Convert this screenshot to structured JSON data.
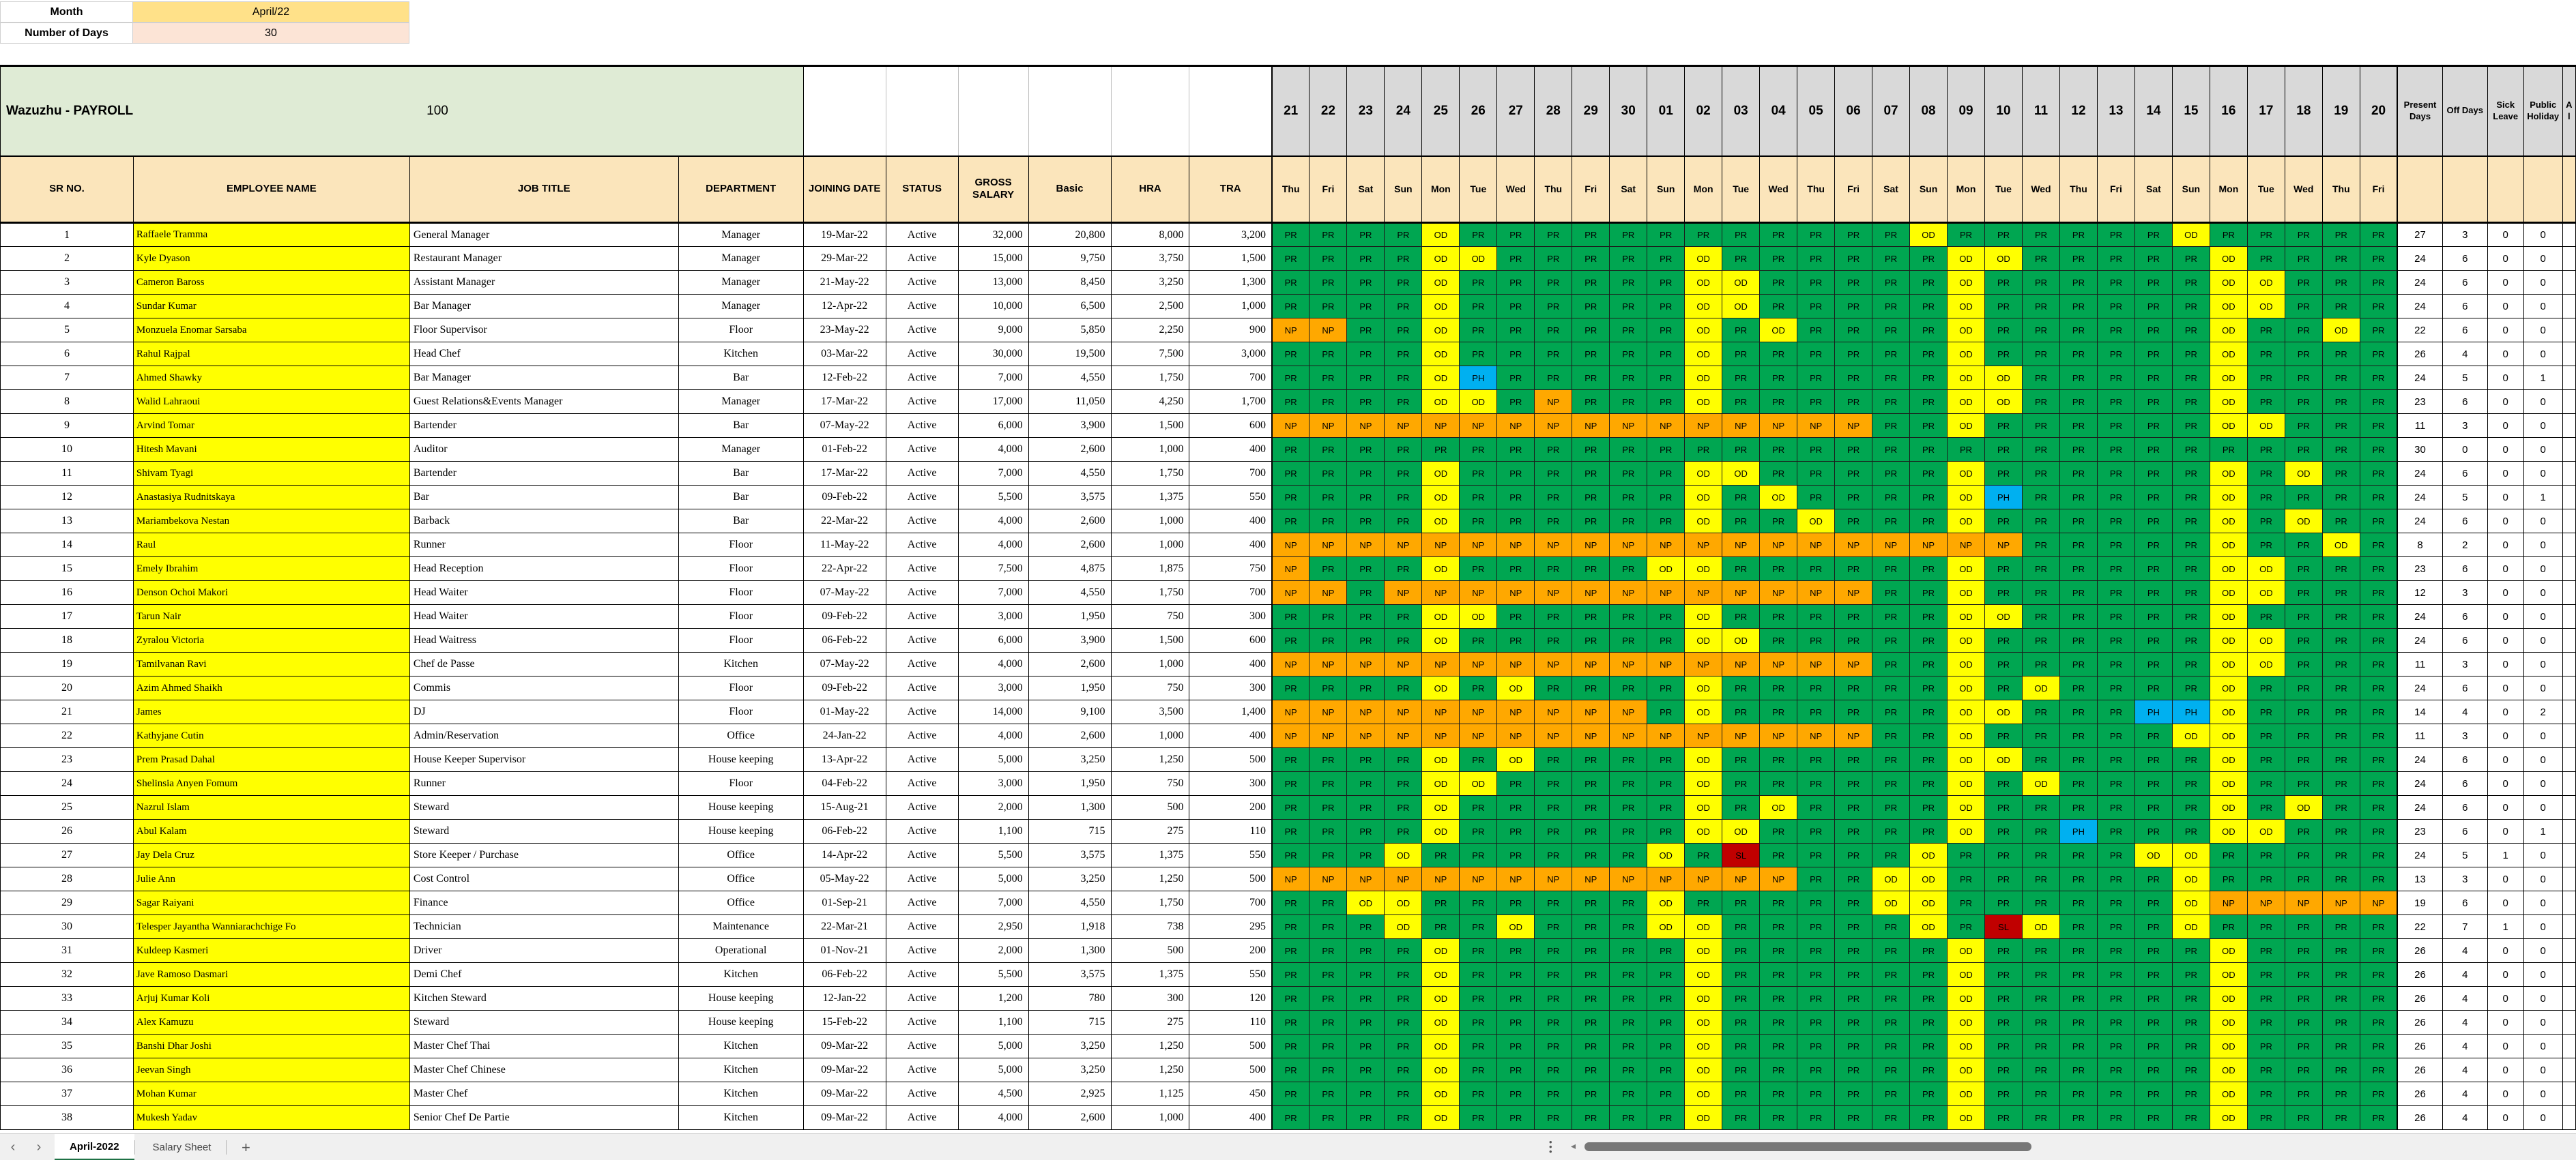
{
  "meta": {
    "month_label": "Month",
    "month_value": "April/22",
    "days_label": "Number of Days",
    "days_value": "30",
    "month_fill": "#FFE189",
    "days_fill": "#FCE4D6"
  },
  "payroll": {
    "title": "Wazuzhu - PAYROLL",
    "value": "100",
    "band_fill": "#DFEBD5"
  },
  "columns": [
    "SR NO.",
    "EMPLOYEE NAME",
    "JOB TITLE",
    "DEPARTMENT",
    "JOINING DATE",
    "STATUS",
    "GROSS SALARY",
    "Basic",
    "HRA",
    "TRA"
  ],
  "day_numbers": [
    "21",
    "22",
    "23",
    "24",
    "25",
    "26",
    "27",
    "28",
    "29",
    "30",
    "01",
    "02",
    "03",
    "04",
    "05",
    "06",
    "07",
    "08",
    "09",
    "10",
    "11",
    "12",
    "13",
    "14",
    "15",
    "16",
    "17",
    "18",
    "19",
    "20"
  ],
  "weekdays": [
    "Thu",
    "Fri",
    "Sat",
    "Sun",
    "Mon",
    "Tue",
    "Wed",
    "Thu",
    "Fri",
    "Sat",
    "Sun",
    "Mon",
    "Tue",
    "Wed",
    "Thu",
    "Fri",
    "Sat",
    "Sun",
    "Mon",
    "Tue",
    "Wed",
    "Thu",
    "Fri",
    "Sat",
    "Sun",
    "Mon",
    "Tue",
    "Wed",
    "Thu",
    "Fri"
  ],
  "summary_columns": [
    "Present Days",
    "Off Days",
    "Sick Leave",
    "Public Holiday"
  ],
  "partial_column": "A l",
  "codes": {
    "PR": "#00A651",
    "OD": "#FFFF00",
    "NP": "#FFA800",
    "PH": "#00B0F0",
    "SL": "#C00000"
  },
  "employees": [
    {
      "sr": "1",
      "name": "Raffaele Tramma",
      "title": "General Manager",
      "dept": "Manager",
      "joined": "19-Mar-22",
      "status": "Active",
      "gross": "32,000",
      "basic": "20,800",
      "hra": "8,000",
      "tra": "3,200",
      "att": "PR PR PR PR OD PR PR PR PR PR PR PR PR PR PR PR PR OD PR PR PR PR PR PR OD PR PR PR PR PR",
      "present": "27",
      "off": "3",
      "sick": "0",
      "ph": "0"
    },
    {
      "sr": "2",
      "name": "Kyle Dyason",
      "title": "Restaurant Manager",
      "dept": "Manager",
      "joined": "29-Mar-22",
      "status": "Active",
      "gross": "15,000",
      "basic": "9,750",
      "hra": "3,750",
      "tra": "1,500",
      "att": "PR PR PR PR OD OD PR PR PR PR PR OD PR PR PR PR PR PR OD OD PR PR PR PR PR OD PR PR PR PR",
      "present": "24",
      "off": "6",
      "sick": "0",
      "ph": "0"
    },
    {
      "sr": "3",
      "name": "Cameron Baross",
      "title": "Assistant Manager",
      "dept": "Manager",
      "joined": "21-May-22",
      "status": "Active",
      "gross": "13,000",
      "basic": "8,450",
      "hra": "3,250",
      "tra": "1,300",
      "att": "PR PR PR PR OD PR PR PR PR PR PR OD OD PR PR PR PR PR OD PR PR PR PR PR PR OD OD PR PR PR",
      "present": "24",
      "off": "6",
      "sick": "0",
      "ph": "0"
    },
    {
      "sr": "4",
      "name": "Sundar Kumar",
      "title": "Bar Manager",
      "dept": "Manager",
      "joined": "12-Apr-22",
      "status": "Active",
      "gross": "10,000",
      "basic": "6,500",
      "hra": "2,500",
      "tra": "1,000",
      "att": "PR PR PR PR OD PR PR PR PR PR PR OD OD PR PR PR PR PR OD PR PR PR PR PR PR OD OD PR PR PR",
      "present": "24",
      "off": "6",
      "sick": "0",
      "ph": "0"
    },
    {
      "sr": "5",
      "name": "Monzuela Enomar Sarsaba",
      "title": "Floor Supervisor",
      "dept": "Floor",
      "joined": "23-May-22",
      "status": "Active",
      "gross": "9,000",
      "basic": "5,850",
      "hra": "2,250",
      "tra": "900",
      "att": "NP NP PR PR OD PR PR PR PR PR PR OD PR OD PR PR PR PR OD PR PR PR PR PR PR OD PR PR OD PR",
      "present": "22",
      "off": "6",
      "sick": "0",
      "ph": "0"
    },
    {
      "sr": "6",
      "name": "Rahul Rajpal",
      "title": "Head Chef",
      "dept": "Kitchen",
      "joined": "03-Mar-22",
      "status": "Active",
      "gross": "30,000",
      "basic": "19,500",
      "hra": "7,500",
      "tra": "3,000",
      "att": "PR PR PR PR OD PR PR PR PR PR PR OD PR PR PR PR PR PR OD PR PR PR PR PR PR OD PR PR PR PR",
      "present": "26",
      "off": "4",
      "sick": "0",
      "ph": "0"
    },
    {
      "sr": "7",
      "name": "Ahmed Shawky",
      "title": "Bar Manager",
      "dept": "Bar",
      "joined": "12-Feb-22",
      "status": "Active",
      "gross": "7,000",
      "basic": "4,550",
      "hra": "1,750",
      "tra": "700",
      "att": "PR PR PR PR OD PH PR PR PR PR PR OD PR PR PR PR PR PR OD OD PR PR PR PR PR OD PR PR PR PR",
      "present": "24",
      "off": "5",
      "sick": "0",
      "ph": "1"
    },
    {
      "sr": "8",
      "name": "Walid Lahraoui",
      "title": "Guest Relations&Events Manager",
      "dept": "Manager",
      "joined": "17-Mar-22",
      "status": "Active",
      "gross": "17,000",
      "basic": "11,050",
      "hra": "4,250",
      "tra": "1,700",
      "att": "PR PR PR PR OD OD PR NP PR PR PR OD PR PR PR PR PR PR OD OD PR PR PR PR PR OD PR PR PR PR",
      "present": "23",
      "off": "6",
      "sick": "0",
      "ph": "0"
    },
    {
      "sr": "9",
      "name": "Arvind Tomar",
      "title": "Bartender",
      "dept": "Bar",
      "joined": "07-May-22",
      "status": "Active",
      "gross": "6,000",
      "basic": "3,900",
      "hra": "1,500",
      "tra": "600",
      "att": "NP NP NP NP NP NP NP NP NP NP NP NP NP NP NP NP PR PR OD PR PR PR PR PR PR OD OD PR PR PR",
      "present": "11",
      "off": "3",
      "sick": "0",
      "ph": "0"
    },
    {
      "sr": "10",
      "name": "Hitesh Mavani",
      "title": "Auditor",
      "dept": "Manager",
      "joined": "01-Feb-22",
      "status": "Active",
      "gross": "4,000",
      "basic": "2,600",
      "hra": "1,000",
      "tra": "400",
      "att": "PR PR PR PR PR PR PR PR PR PR PR PR PR PR PR PR PR PR PR PR PR PR PR PR PR PR PR PR PR PR",
      "present": "30",
      "off": "0",
      "sick": "0",
      "ph": "0"
    },
    {
      "sr": "11",
      "name": "Shivam Tyagi",
      "title": "Bartender",
      "dept": "Bar",
      "joined": "17-Mar-22",
      "status": "Active",
      "gross": "7,000",
      "basic": "4,550",
      "hra": "1,750",
      "tra": "700",
      "att": "PR PR PR PR OD PR PR PR PR PR PR OD OD PR PR PR PR PR OD PR PR PR PR PR PR OD PR OD PR PR",
      "present": "24",
      "off": "6",
      "sick": "0",
      "ph": "0"
    },
    {
      "sr": "12",
      "name": "Anastasiya Rudnitskaya",
      "title": "Bar",
      "dept": "Bar",
      "joined": "09-Feb-22",
      "status": "Active",
      "gross": "5,500",
      "basic": "3,575",
      "hra": "1,375",
      "tra": "550",
      "att": "PR PR PR PR OD PR PR PR PR PR PR OD PR OD PR PR PR PR OD PH PR PR PR PR PR OD PR PR PR PR",
      "present": "24",
      "off": "5",
      "sick": "0",
      "ph": "1"
    },
    {
      "sr": "13",
      "name": "Mariambekova Nestan",
      "title": "Barback",
      "dept": "Bar",
      "joined": "22-Mar-22",
      "status": "Active",
      "gross": "4,000",
      "basic": "2,600",
      "hra": "1,000",
      "tra": "400",
      "att": "PR PR PR PR OD PR PR PR PR PR PR OD PR PR OD PR PR PR OD PR PR PR PR PR PR OD PR OD PR PR",
      "present": "24",
      "off": "6",
      "sick": "0",
      "ph": "0"
    },
    {
      "sr": "14",
      "name": "Raul",
      "title": "Runner",
      "dept": "Floor",
      "joined": "11-May-22",
      "status": "Active",
      "gross": "4,000",
      "basic": "2,600",
      "hra": "1,000",
      "tra": "400",
      "att": "NP NP NP NP NP NP NP NP NP NP NP NP NP NP NP NP NP NP NP NP PR PR PR PR PR OD PR PR OD PR",
      "present": "8",
      "off": "2",
      "sick": "0",
      "ph": "0"
    },
    {
      "sr": "15",
      "name": "Emely Ibrahim",
      "title": "Head Reception",
      "dept": "Floor",
      "joined": "22-Apr-22",
      "status": "Active",
      "gross": "7,500",
      "basic": "4,875",
      "hra": "1,875",
      "tra": "750",
      "att": "NP PR PR PR OD PR PR PR PR PR OD OD PR PR PR PR PR PR OD PR PR PR PR PR PR OD OD PR PR PR",
      "present": "23",
      "off": "6",
      "sick": "0",
      "ph": "0"
    },
    {
      "sr": "16",
      "name": "Denson Ochoi Makori",
      "title": "Head Waiter",
      "dept": "Floor",
      "joined": "07-May-22",
      "status": "Active",
      "gross": "7,000",
      "basic": "4,550",
      "hra": "1,750",
      "tra": "700",
      "att": "NP NP PR NP NP NP NP NP NP NP NP NP NP NP NP NP PR PR OD PR PR PR PR PR PR OD OD PR PR PR",
      "present": "12",
      "off": "3",
      "sick": "0",
      "ph": "0"
    },
    {
      "sr": "17",
      "name": "Tarun Nair",
      "title": "Head Waiter",
      "dept": "Floor",
      "joined": "09-Feb-22",
      "status": "Active",
      "gross": "3,000",
      "basic": "1,950",
      "hra": "750",
      "tra": "300",
      "att": "PR PR PR PR OD OD PR PR PR PR PR OD PR PR PR PR PR PR OD OD PR PR PR PR PR OD PR PR PR PR",
      "present": "24",
      "off": "6",
      "sick": "0",
      "ph": "0"
    },
    {
      "sr": "18",
      "name": "Zyralou Victoria",
      "title": "Head Waitress",
      "dept": "Floor",
      "joined": "06-Feb-22",
      "status": "Active",
      "gross": "6,000",
      "basic": "3,900",
      "hra": "1,500",
      "tra": "600",
      "att": "PR PR PR PR OD PR PR PR PR PR PR OD OD PR PR PR PR PR OD PR PR PR PR PR PR OD OD PR PR PR",
      "present": "24",
      "off": "6",
      "sick": "0",
      "ph": "0"
    },
    {
      "sr": "19",
      "name": "Tamilvanan Ravi",
      "title": "Chef de Passe",
      "dept": "Kitchen",
      "joined": "07-May-22",
      "status": "Active",
      "gross": "4,000",
      "basic": "2,600",
      "hra": "1,000",
      "tra": "400",
      "att": "NP NP NP NP NP NP NP NP NP NP NP NP NP NP NP NP PR PR OD PR PR PR PR PR PR OD OD PR PR PR",
      "present": "11",
      "off": "3",
      "sick": "0",
      "ph": "0"
    },
    {
      "sr": "20",
      "name": "Azim Ahmed Shaikh",
      "title": "Commis",
      "dept": "Floor",
      "joined": "09-Feb-22",
      "status": "Active",
      "gross": "3,000",
      "basic": "1,950",
      "hra": "750",
      "tra": "300",
      "att": "PR PR PR PR OD PR OD PR PR PR PR OD PR PR PR PR PR PR OD PR OD PR PR PR PR OD PR PR PR PR",
      "present": "24",
      "off": "6",
      "sick": "0",
      "ph": "0"
    },
    {
      "sr": "21",
      "name": "James",
      "title": "DJ",
      "dept": "Floor",
      "joined": "01-May-22",
      "status": "Active",
      "gross": "14,000",
      "basic": "9,100",
      "hra": "3,500",
      "tra": "1,400",
      "att": "NP NP NP NP NP NP NP NP NP NP PR OD PR PR PR PR PR PR OD OD PR PR PR PH PH OD PR PR PR PR",
      "present": "14",
      "off": "4",
      "sick": "0",
      "ph": "2"
    },
    {
      "sr": "22",
      "name": "Kathyjane Cutin",
      "title": "Admin/Reservation",
      "dept": "Office",
      "joined": "24-Jan-22",
      "status": "Active",
      "gross": "4,000",
      "basic": "2,600",
      "hra": "1,000",
      "tra": "400",
      "att": "NP NP NP NP NP NP NP NP NP NP NP NP NP NP NP NP PR PR OD PR PR PR PR PR OD OD PR PR PR PR",
      "present": "11",
      "off": "3",
      "sick": "0",
      "ph": "0"
    },
    {
      "sr": "23",
      "name": "Prem Prasad Dahal",
      "title": "House Keeper Supervisor",
      "dept": "House keeping",
      "joined": "13-Apr-22",
      "status": "Active",
      "gross": "5,000",
      "basic": "3,250",
      "hra": "1,250",
      "tra": "500",
      "att": "PR PR PR PR OD PR OD PR PR PR PR OD PR PR PR PR PR PR OD OD PR PR PR PR PR OD PR PR PR PR",
      "present": "24",
      "off": "6",
      "sick": "0",
      "ph": "0"
    },
    {
      "sr": "24",
      "name": "Shelinsia Anyen Fomum",
      "title": "Runner",
      "dept": "Floor",
      "joined": "04-Feb-22",
      "status": "Active",
      "gross": "3,000",
      "basic": "1,950",
      "hra": "750",
      "tra": "300",
      "att": "PR PR PR PR OD OD PR PR PR PR PR OD PR PR PR PR PR PR OD PR OD PR PR PR PR OD PR PR PR PR",
      "present": "24",
      "off": "6",
      "sick": "0",
      "ph": "0"
    },
    {
      "sr": "25",
      "name": "Nazrul Islam",
      "title": "Steward",
      "dept": "House keeping",
      "joined": "15-Aug-21",
      "status": "Active",
      "gross": "2,000",
      "basic": "1,300",
      "hra": "500",
      "tra": "200",
      "att": "PR PR PR PR OD PR PR PR PR PR PR OD PR OD PR PR PR PR OD PR PR PR PR PR PR OD PR OD PR PR",
      "present": "24",
      "off": "6",
      "sick": "0",
      "ph": "0"
    },
    {
      "sr": "26",
      "name": "Abul Kalam",
      "title": "Steward",
      "dept": "House keeping",
      "joined": "06-Feb-22",
      "status": "Active",
      "gross": "1,100",
      "basic": "715",
      "hra": "275",
      "tra": "110",
      "att": "PR PR PR PR OD PR PR PR PR PR PR OD OD PR PR PR PR PR OD PR PR PH PR PR PR OD OD PR PR PR",
      "present": "23",
      "off": "6",
      "sick": "0",
      "ph": "1"
    },
    {
      "sr": "27",
      "name": "Jay Dela Cruz",
      "title": "Store Keeper / Purchase",
      "dept": "Office",
      "joined": "14-Apr-22",
      "status": "Active",
      "gross": "5,500",
      "basic": "3,575",
      "hra": "1,375",
      "tra": "550",
      "att": "PR PR PR OD PR PR PR PR PR PR OD PR SL PR PR PR PR OD PR PR PR PR PR OD OD PR PR PR PR PR",
      "present": "24",
      "off": "5",
      "sick": "1",
      "ph": "0"
    },
    {
      "sr": "28",
      "name": "Julie Ann",
      "title": "Cost Control",
      "dept": "Office",
      "joined": "05-May-22",
      "status": "Active",
      "gross": "5,000",
      "basic": "3,250",
      "hra": "1,250",
      "tra": "500",
      "att": "NP NP NP NP NP NP NP NP NP NP NP NP NP NP PR PR OD OD PR PR PR PR PR PR OD PR PR PR PR PR",
      "present": "13",
      "off": "3",
      "sick": "0",
      "ph": "0"
    },
    {
      "sr": "29",
      "name": "Sagar Raiyani",
      "title": "Finance",
      "dept": "Office",
      "joined": "01-Sep-21",
      "status": "Active",
      "gross": "7,000",
      "basic": "4,550",
      "hra": "1,750",
      "tra": "700",
      "att": "PR PR OD OD PR PR PR PR PR PR OD PR PR PR PR PR OD OD PR PR PR PR PR PR OD NP NP NP NP NP",
      "present": "19",
      "off": "6",
      "sick": "0",
      "ph": "0"
    },
    {
      "sr": "30",
      "name": "Telesper Jayantha Wanniarachchige Fo",
      "title": "Technician",
      "dept": "Maintenance",
      "joined": "22-Mar-21",
      "status": "Active",
      "gross": "2,950",
      "basic": "1,918",
      "hra": "738",
      "tra": "295",
      "att": "PR PR PR OD PR PR OD PR PR PR OD OD PR PR PR PR PR OD PR SL OD PR PR PR OD PR PR PR PR PR",
      "present": "22",
      "off": "7",
      "sick": "1",
      "ph": "0"
    },
    {
      "sr": "31",
      "name": "Kuldeep Kasmeri",
      "title": "Driver",
      "dept": "Operational",
      "joined": "01-Nov-21",
      "status": "Active",
      "gross": "2,000",
      "basic": "1,300",
      "hra": "500",
      "tra": "200",
      "att": "PR PR PR PR OD PR PR PR PR PR PR OD PR PR PR PR PR PR OD PR PR PR PR PR PR OD PR PR PR PR",
      "present": "26",
      "off": "4",
      "sick": "0",
      "ph": "0"
    },
    {
      "sr": "32",
      "name": "Jave Ramoso Dasmari",
      "title": "Demi Chef",
      "dept": "Kitchen",
      "joined": "06-Feb-22",
      "status": "Active",
      "gross": "5,500",
      "basic": "3,575",
      "hra": "1,375",
      "tra": "550",
      "att": "PR PR PR PR OD PR PR PR PR PR PR OD PR PR PR PR PR PR OD PR PR PR PR PR PR OD PR PR PR PR",
      "present": "26",
      "off": "4",
      "sick": "0",
      "ph": "0"
    },
    {
      "sr": "33",
      "name": "Arjuj Kumar Koli",
      "title": "Kitchen Steward",
      "dept": "House keeping",
      "joined": "12-Jan-22",
      "status": "Active",
      "gross": "1,200",
      "basic": "780",
      "hra": "300",
      "tra": "120",
      "att": "PR PR PR PR OD PR PR PR PR PR PR OD PR PR PR PR PR PR OD PR PR PR PR PR PR OD PR PR PR PR",
      "present": "26",
      "off": "4",
      "sick": "0",
      "ph": "0"
    },
    {
      "sr": "34",
      "name": "Alex Kamuzu",
      "title": "Steward",
      "dept": "House keeping",
      "joined": "15-Feb-22",
      "status": "Active",
      "gross": "1,100",
      "basic": "715",
      "hra": "275",
      "tra": "110",
      "att": "PR PR PR PR OD PR PR PR PR PR PR OD PR PR PR PR PR PR OD PR PR PR PR PR PR OD PR PR PR PR",
      "present": "26",
      "off": "4",
      "sick": "0",
      "ph": "0"
    },
    {
      "sr": "35",
      "name": "Banshi Dhar Joshi",
      "title": "Master Chef Thai",
      "dept": "Kitchen",
      "joined": "09-Mar-22",
      "status": "Active",
      "gross": "5,000",
      "basic": "3,250",
      "hra": "1,250",
      "tra": "500",
      "att": "PR PR PR PR OD PR PR PR PR PR PR OD PR PR PR PR PR PR OD PR PR PR PR PR PR OD PR PR PR PR",
      "present": "26",
      "off": "4",
      "sick": "0",
      "ph": "0"
    },
    {
      "sr": "36",
      "name": "Jeevan Singh",
      "title": "Master Chef Chinese",
      "dept": "Kitchen",
      "joined": "09-Mar-22",
      "status": "Active",
      "gross": "5,000",
      "basic": "3,250",
      "hra": "1,250",
      "tra": "500",
      "att": "PR PR PR PR OD PR PR PR PR PR PR OD PR PR PR PR PR PR OD PR PR PR PR PR PR OD PR PR PR PR",
      "present": "26",
      "off": "4",
      "sick": "0",
      "ph": "0"
    },
    {
      "sr": "37",
      "name": "Mohan Kumar",
      "title": "Master Chef",
      "dept": "Kitchen",
      "joined": "09-Mar-22",
      "status": "Active",
      "gross": "4,500",
      "basic": "2,925",
      "hra": "1,125",
      "tra": "450",
      "att": "PR PR PR PR OD PR PR PR PR PR PR OD PR PR PR PR PR PR OD PR PR PR PR PR PR OD PR PR PR PR",
      "present": "26",
      "off": "4",
      "sick": "0",
      "ph": "0"
    },
    {
      "sr": "38",
      "name": "Mukesh Yadav",
      "title": "Senior Chef De Partie",
      "dept": "Kitchen",
      "joined": "09-Mar-22",
      "status": "Active",
      "gross": "4,000",
      "basic": "2,600",
      "hra": "1,000",
      "tra": "400",
      "att": "PR PR PR PR OD PR PR PR PR PR PR OD PR PR PR PR PR PR OD PR PR PR PR PR PR OD PR PR PR PR",
      "present": "26",
      "off": "4",
      "sick": "0",
      "ph": "0"
    }
  ],
  "tabs": {
    "prev": "‹",
    "next": "›",
    "sheets": [
      {
        "label": "April-2022",
        "active": true
      },
      {
        "label": "Salary Sheet",
        "active": false
      }
    ],
    "add": "+",
    "accent": "#1E7145"
  }
}
